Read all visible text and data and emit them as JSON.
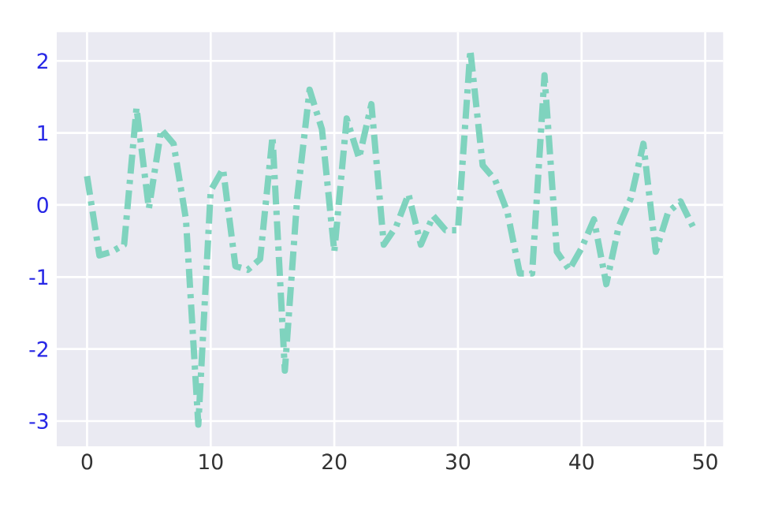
{
  "chart_data": {
    "type": "line",
    "x": [
      0,
      1,
      2,
      3,
      4,
      5,
      6,
      7,
      8,
      9,
      10,
      11,
      12,
      13,
      14,
      15,
      16,
      17,
      18,
      19,
      20,
      21,
      22,
      23,
      24,
      25,
      26,
      27,
      28,
      29,
      30,
      31,
      32,
      33,
      34,
      35,
      36,
      37,
      38,
      39,
      40,
      41,
      42,
      43,
      44,
      45,
      46,
      47,
      48,
      49
    ],
    "series": [
      {
        "color": "#7fd3be",
        "values": [
          0.4,
          -0.7,
          -0.65,
          -0.55,
          1.35,
          -0.05,
          1.05,
          0.85,
          -0.2,
          -3.05,
          0.2,
          0.5,
          -0.85,
          -0.9,
          -0.75,
          0.95,
          -2.3,
          0.1,
          1.6,
          1.05,
          -0.65,
          1.2,
          0.65,
          1.4,
          -0.55,
          -0.3,
          0.15,
          -0.55,
          -0.15,
          -0.35,
          -0.35,
          2.15,
          0.55,
          0.35,
          -0.1,
          -0.95,
          -0.95,
          1.8,
          -0.65,
          -0.9,
          -0.6,
          -0.2,
          -1.1,
          -0.3,
          0.1,
          0.85,
          -0.65,
          -0.1,
          0.05,
          -0.3
        ]
      }
    ],
    "xlim": [
      -2.45,
      51.45
    ],
    "ylim": [
      -3.35,
      2.4
    ],
    "xticks": [
      0,
      10,
      20,
      30,
      40,
      50
    ],
    "yticks": [
      -3,
      -2,
      -1,
      0,
      1,
      2
    ],
    "grid": true,
    "line_style": "dashdot",
    "marker": "none"
  }
}
